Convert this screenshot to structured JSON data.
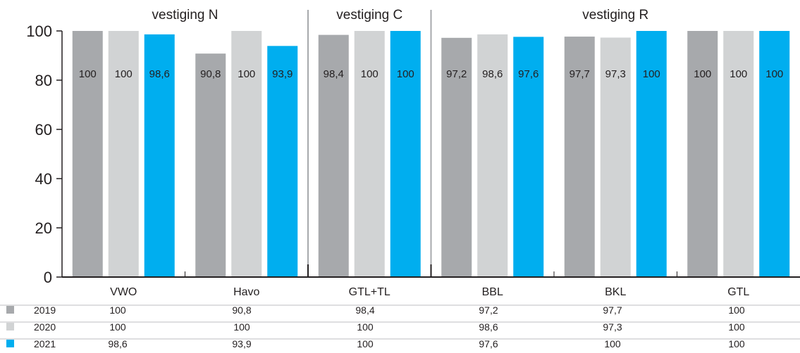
{
  "chart_data": {
    "type": "bar",
    "groups": [
      {
        "label": "vestiging N",
        "categories": [
          "VWO",
          "Havo"
        ]
      },
      {
        "label": "vestiging C",
        "categories": [
          "GTL+TL"
        ]
      },
      {
        "label": "vestiging R",
        "categories": [
          "BBL",
          "BKL",
          "GTL"
        ]
      }
    ],
    "categories": [
      "VWO",
      "Havo",
      "GTL+TL",
      "BBL",
      "BKL",
      "GTL"
    ],
    "series": [
      {
        "name": "2019",
        "color": "#a7a9ac",
        "values": [
          100,
          90.8,
          98.4,
          97.2,
          97.7,
          100
        ],
        "labels": [
          "100",
          "90,8",
          "98,4",
          "97,2",
          "97,7",
          "100"
        ]
      },
      {
        "name": "2020",
        "color": "#d1d3d4",
        "values": [
          100,
          100,
          100,
          98.6,
          97.3,
          100
        ],
        "labels": [
          "100",
          "100",
          "100",
          "98,6",
          "97,3",
          "100"
        ]
      },
      {
        "name": "2021",
        "color": "#00aeef",
        "values": [
          98.6,
          93.9,
          100,
          97.6,
          100,
          100
        ],
        "labels": [
          "98,6",
          "93,9",
          "100",
          "97,6",
          "100",
          "100"
        ]
      }
    ],
    "ylim": [
      0,
      100
    ],
    "yticks": [
      "0",
      "20",
      "40",
      "60",
      "80",
      "100"
    ],
    "ytick_values": [
      0,
      20,
      40,
      60,
      80,
      100
    ],
    "legend": "table-below",
    "grid": false
  }
}
